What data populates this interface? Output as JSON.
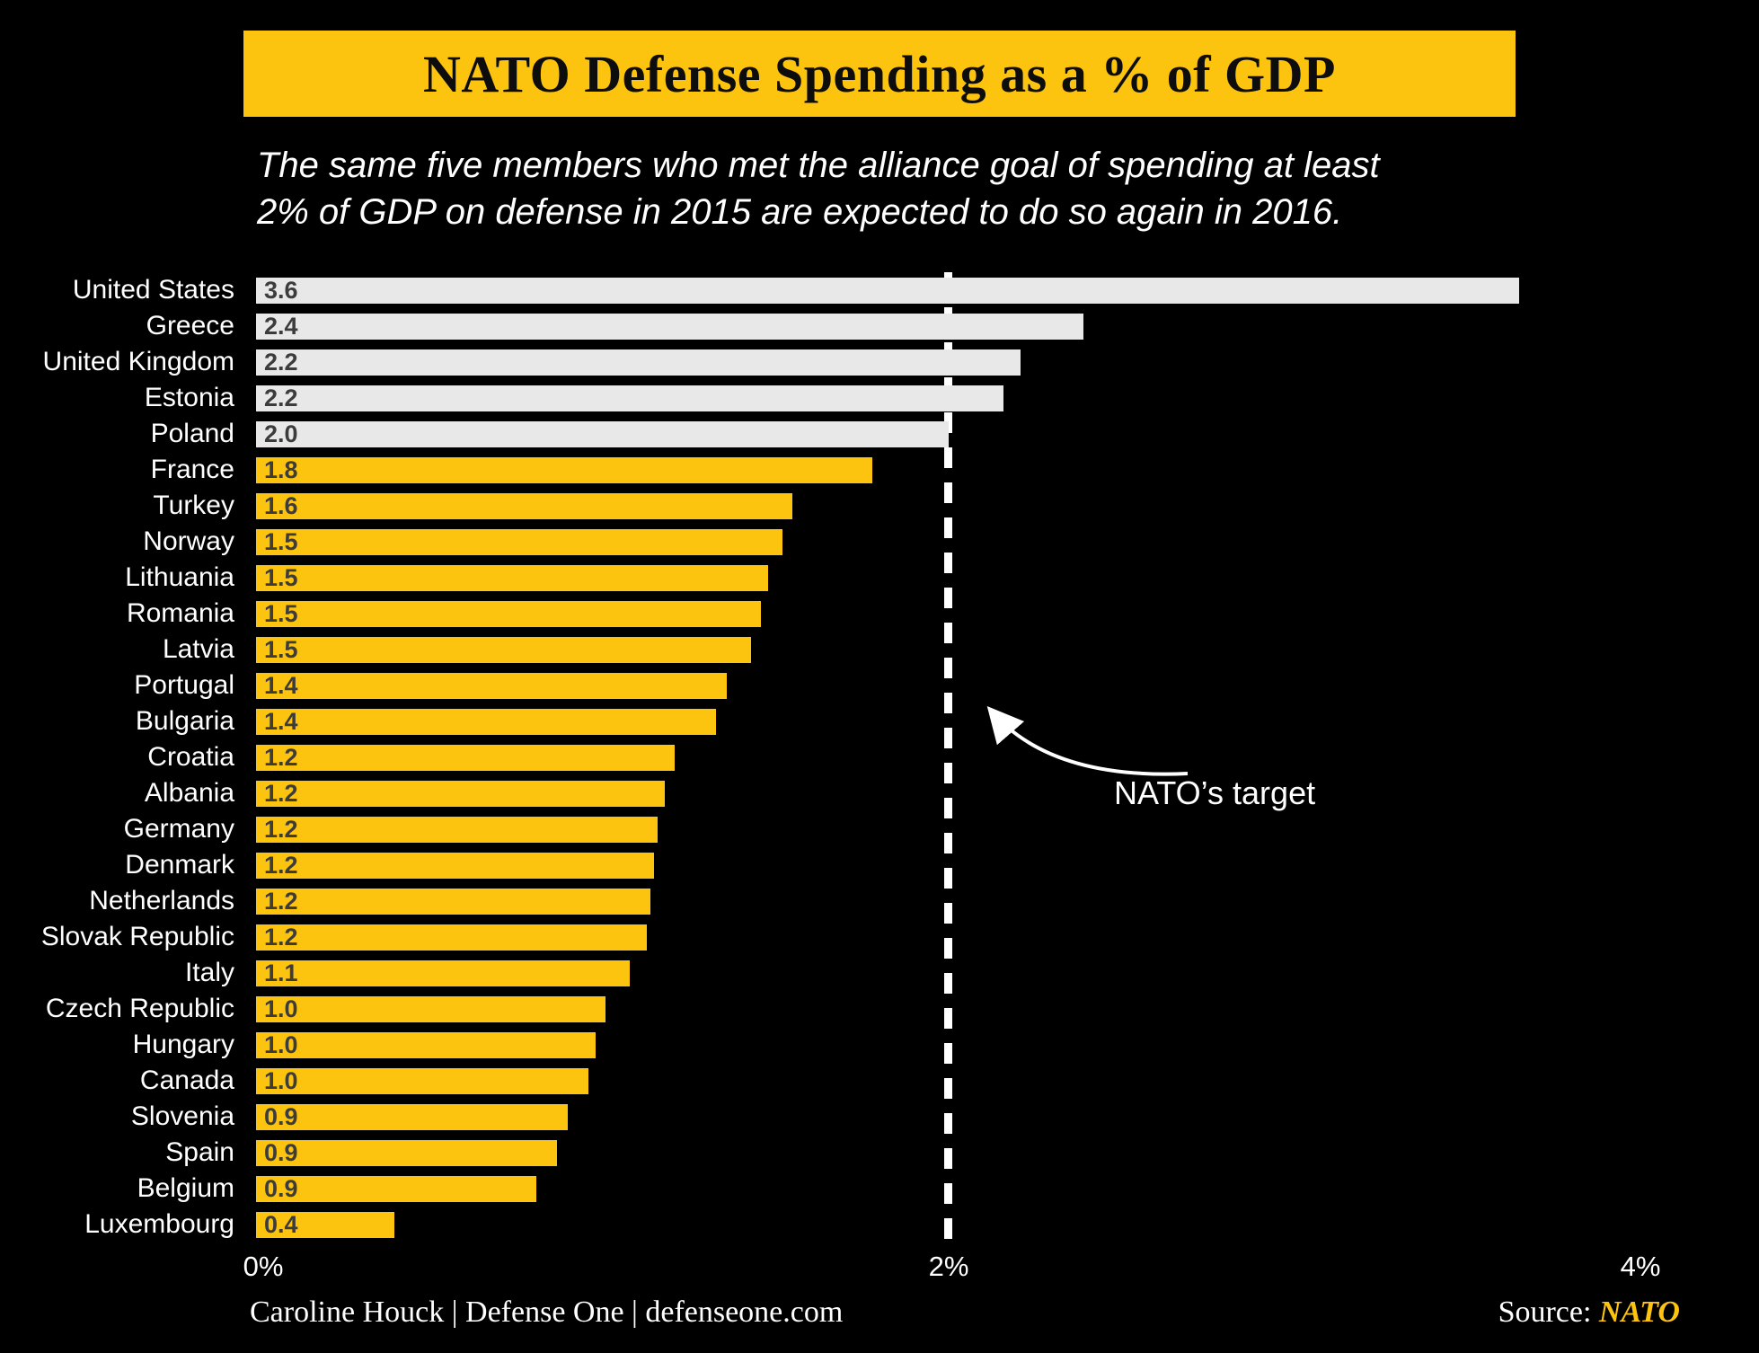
{
  "header": {
    "title": "NATO Defense Spending as a % of GDP",
    "subtitle": "The same five members who met the alliance goal of spending at least\n2% of GDP on defense in 2015 are expected to do so again in 2016."
  },
  "chart_data": {
    "type": "bar",
    "orientation": "horizontal",
    "title": "NATO Defense Spending as a % of GDP",
    "categories": [
      "United States",
      "Greece",
      "United Kingdom",
      "Estonia",
      "Poland",
      "France",
      "Turkey",
      "Norway",
      "Lithuania",
      "Romania",
      "Latvia",
      "Portugal",
      "Bulgaria",
      "Croatia",
      "Albania",
      "Germany",
      "Denmark",
      "Netherlands",
      "Slovak Republic",
      "Italy",
      "Czech Republic",
      "Hungary",
      "Canada",
      "Slovenia",
      "Spain",
      "Belgium",
      "Luxembourg"
    ],
    "values": [
      3.6,
      2.4,
      2.2,
      2.2,
      2.0,
      1.8,
      1.6,
      1.5,
      1.5,
      1.5,
      1.5,
      1.4,
      1.4,
      1.2,
      1.2,
      1.2,
      1.2,
      1.2,
      1.2,
      1.1,
      1.0,
      1.0,
      1.0,
      0.9,
      0.9,
      0.9,
      0.4
    ],
    "value_labels": [
      "3.6",
      "2.4",
      "2.2",
      "2.2",
      "2.0",
      "1.8",
      "1.6",
      "1.5",
      "1.5",
      "1.5",
      "1.5",
      "1.4",
      "1.4",
      "1.2",
      "1.2",
      "1.2",
      "1.2",
      "1.2",
      "1.2",
      "1.1",
      "1.0",
      "1.0",
      "1.0",
      "0.9",
      "0.9",
      "0.9",
      "0.4"
    ],
    "bar_values_estimated": [
      3.65,
      2.39,
      2.21,
      2.16,
      2.0,
      1.78,
      1.55,
      1.52,
      1.48,
      1.46,
      1.43,
      1.36,
      1.33,
      1.21,
      1.18,
      1.16,
      1.15,
      1.14,
      1.13,
      1.08,
      1.01,
      0.98,
      0.96,
      0.9,
      0.87,
      0.81,
      0.4
    ],
    "met_target": [
      true,
      true,
      true,
      true,
      true,
      false,
      false,
      false,
      false,
      false,
      false,
      false,
      false,
      false,
      false,
      false,
      false,
      false,
      false,
      false,
      false,
      false,
      false,
      false,
      false,
      false,
      false
    ],
    "xlabel": "",
    "ylabel": "",
    "xlim": [
      0,
      4
    ],
    "x_ticks": [
      "0%",
      "2%",
      "4%"
    ],
    "grid": false,
    "legend_position": "none",
    "target_line": {
      "x_value": 2,
      "label": "NATO’s target"
    },
    "colors": {
      "background": "#000000",
      "banner": "#FCC30F",
      "title_text": "#0D0D0D",
      "met_bar": "#E8E8E8",
      "below_bar": "#FCC30F",
      "bar_value_text": "#3C3C3C",
      "label_text": "#FFFFFF",
      "target_line": "#FFFFFF",
      "source_accent": "#FCC30F"
    }
  },
  "footer": {
    "credit": "Caroline Houck | Defense One | defenseone.com",
    "source_label": "Source:",
    "source_value": "NATO"
  }
}
